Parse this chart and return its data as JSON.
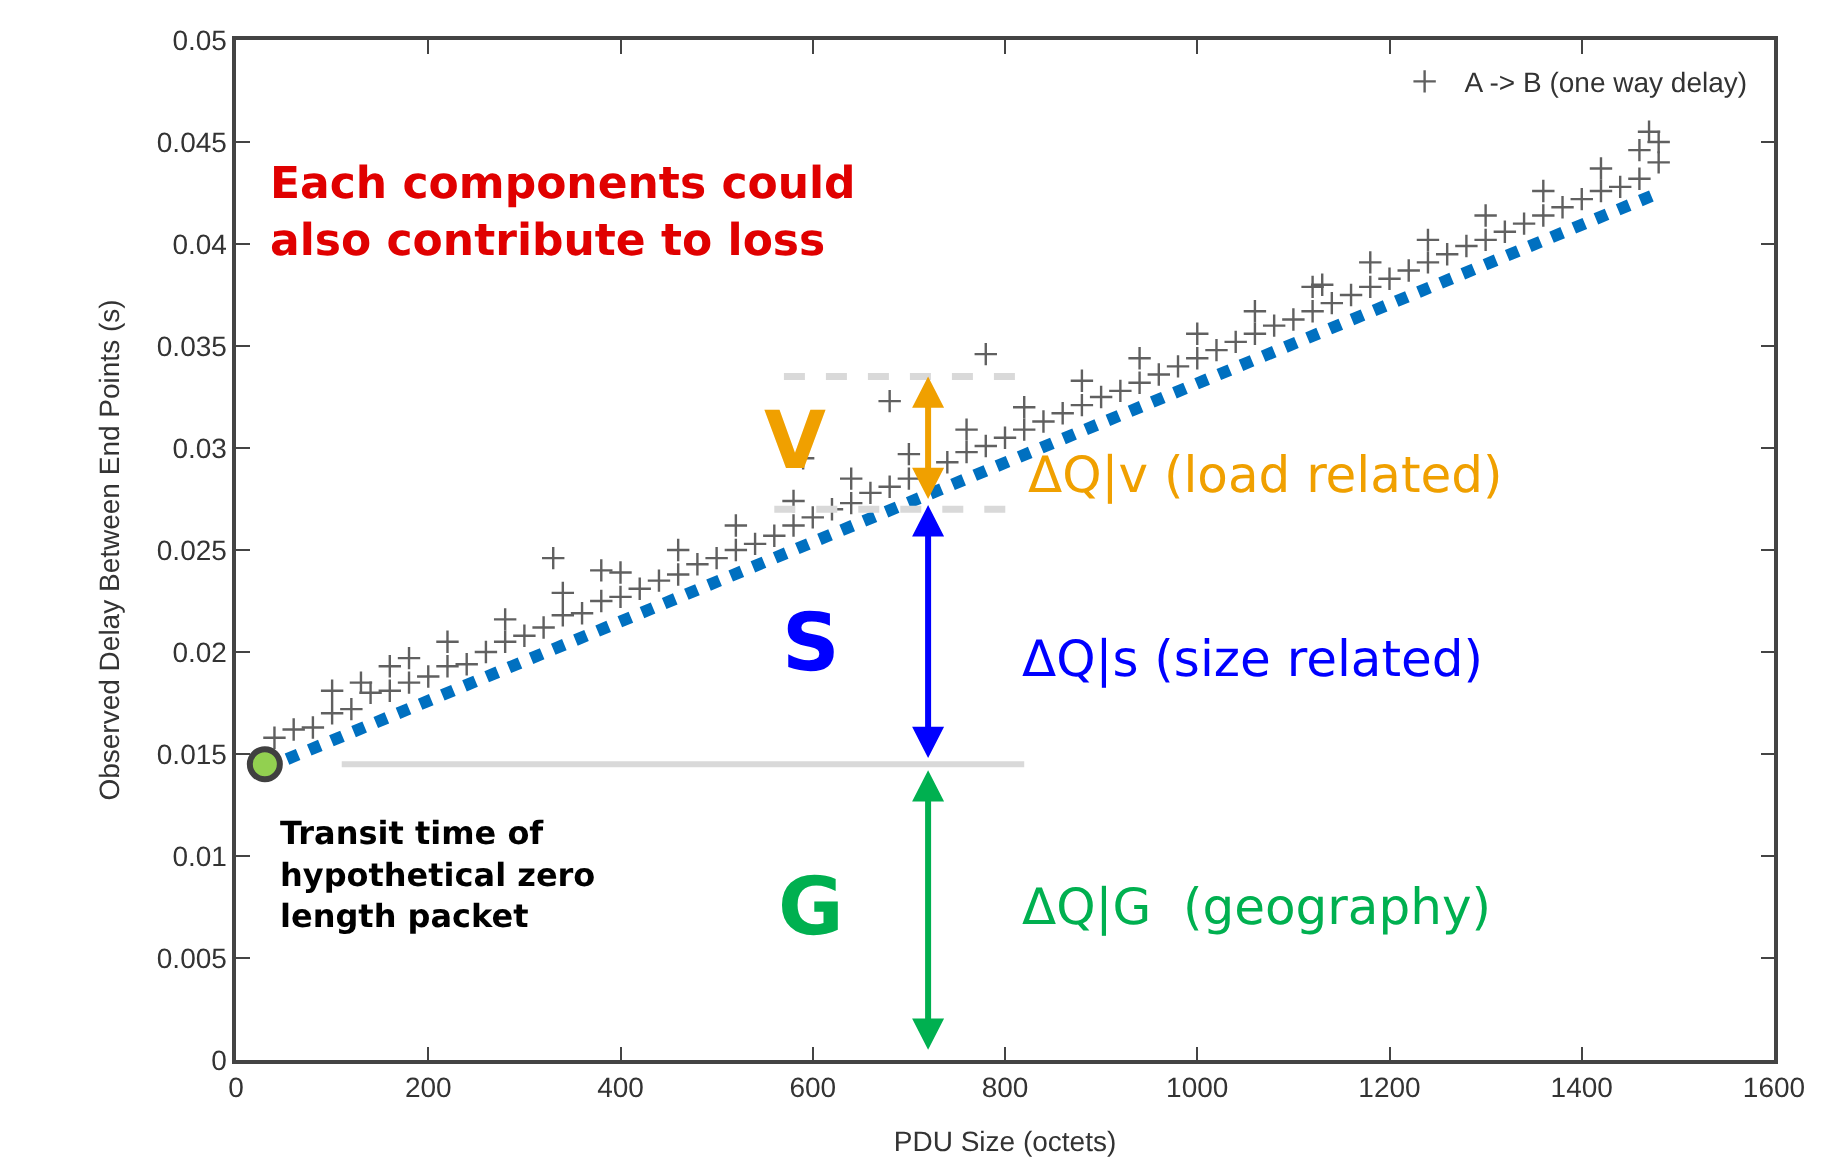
{
  "chart_data": {
    "type": "scatter",
    "xlabel": "PDU Size (octets)",
    "ylabel": "Observed Delay Between End Points (s)",
    "xlim": [
      0,
      1600
    ],
    "xticks": [
      0,
      200,
      400,
      600,
      800,
      1000,
      1200,
      1400,
      1600
    ],
    "ylim": [
      0,
      0.05
    ],
    "yticks": [
      0,
      0.005,
      0.01,
      0.015,
      0.02,
      0.025,
      0.03,
      0.035,
      0.04,
      0.045,
      0.05
    ],
    "legend": "top right",
    "series": [
      {
        "name": "A -> B (one way delay)",
        "marker": "cross",
        "color": "#606060",
        "x": [
          40,
          60,
          80,
          100,
          120,
          140,
          160,
          180,
          200,
          220,
          240,
          260,
          280,
          300,
          320,
          340,
          360,
          380,
          400,
          420,
          440,
          460,
          480,
          500,
          520,
          540,
          560,
          580,
          600,
          620,
          640,
          660,
          680,
          700,
          740,
          760,
          780,
          800,
          820,
          840,
          860,
          880,
          900,
          920,
          940,
          960,
          980,
          1000,
          1020,
          1040,
          1060,
          1080,
          1100,
          1120,
          1140,
          1160,
          1180,
          1200,
          1220,
          1240,
          1260,
          1280,
          1300,
          1320,
          1340,
          1360,
          1380,
          1400,
          1420,
          1440,
          1460,
          1480,
          100,
          160,
          220,
          280,
          340,
          400,
          460,
          520,
          580,
          640,
          700,
          760,
          820,
          880,
          940,
          1000,
          1060,
          1120,
          1180,
          1240,
          1300,
          1360,
          1420,
          1460,
          130,
          180,
          330,
          380,
          590,
          680,
          780,
          1130,
          1470,
          1480
        ],
        "values": [
          0.0158,
          0.0162,
          0.0163,
          0.017,
          0.0172,
          0.018,
          0.0181,
          0.0185,
          0.0188,
          0.0193,
          0.0194,
          0.02,
          0.0205,
          0.0208,
          0.0212,
          0.0218,
          0.0219,
          0.0225,
          0.0227,
          0.0231,
          0.0235,
          0.0238,
          0.0243,
          0.0246,
          0.025,
          0.0253,
          0.0257,
          0.0262,
          0.0266,
          0.027,
          0.0273,
          0.0278,
          0.0281,
          0.0285,
          0.0293,
          0.0298,
          0.0301,
          0.0305,
          0.0309,
          0.0313,
          0.0317,
          0.0321,
          0.0325,
          0.0328,
          0.0332,
          0.0336,
          0.034,
          0.0344,
          0.0348,
          0.0352,
          0.0356,
          0.036,
          0.0363,
          0.0367,
          0.0371,
          0.0375,
          0.0379,
          0.0383,
          0.0387,
          0.0391,
          0.0395,
          0.0399,
          0.0402,
          0.0406,
          0.041,
          0.0414,
          0.0418,
          0.0422,
          0.0426,
          0.0428,
          0.0432,
          0.044,
          0.0181,
          0.0193,
          0.0205,
          0.0216,
          0.0229,
          0.0239,
          0.025,
          0.0262,
          0.0274,
          0.0285,
          0.0297,
          0.0309,
          0.032,
          0.0333,
          0.0344,
          0.0356,
          0.0367,
          0.0379,
          0.0391,
          0.0402,
          0.0414,
          0.0426,
          0.0437,
          0.0446,
          0.0185,
          0.0197,
          0.0246,
          0.024,
          0.0295,
          0.0323,
          0.0346,
          0.038,
          0.0455,
          0.045
        ]
      },
      {
        "type": "line",
        "line_style": "dotted",
        "color": "#0070c0",
        "x": [
          30,
          1480
        ],
        "values": [
          0.0143,
          0.0425
        ]
      },
      {
        "type": "line",
        "line_style": "solid",
        "color": "#d9d9d9",
        "x": [
          110,
          820
        ],
        "values": [
          0.0145,
          0.0145
        ]
      },
      {
        "type": "line",
        "line_style": "dashed",
        "color": "#d9d9d9",
        "x": [
          570,
          820
        ],
        "values": [
          0.0335,
          0.0335
        ]
      },
      {
        "type": "line",
        "line_style": "dashed",
        "color": "#d9d9d9",
        "x": [
          560,
          820
        ],
        "values": [
          0.027,
          0.027
        ]
      },
      {
        "marker": "circle",
        "color": "#92d050",
        "x": [
          30
        ],
        "values": [
          0.0145
        ]
      }
    ],
    "annotations": [
      "Each components could\nalso contribute to loss",
      "V",
      "ΔQ|v (load related)",
      "S",
      "ΔQ|s (size related)",
      "G",
      "ΔQ|G  (geography)",
      "Transit time of\nhypothetical zero\nlength packet"
    ]
  }
}
